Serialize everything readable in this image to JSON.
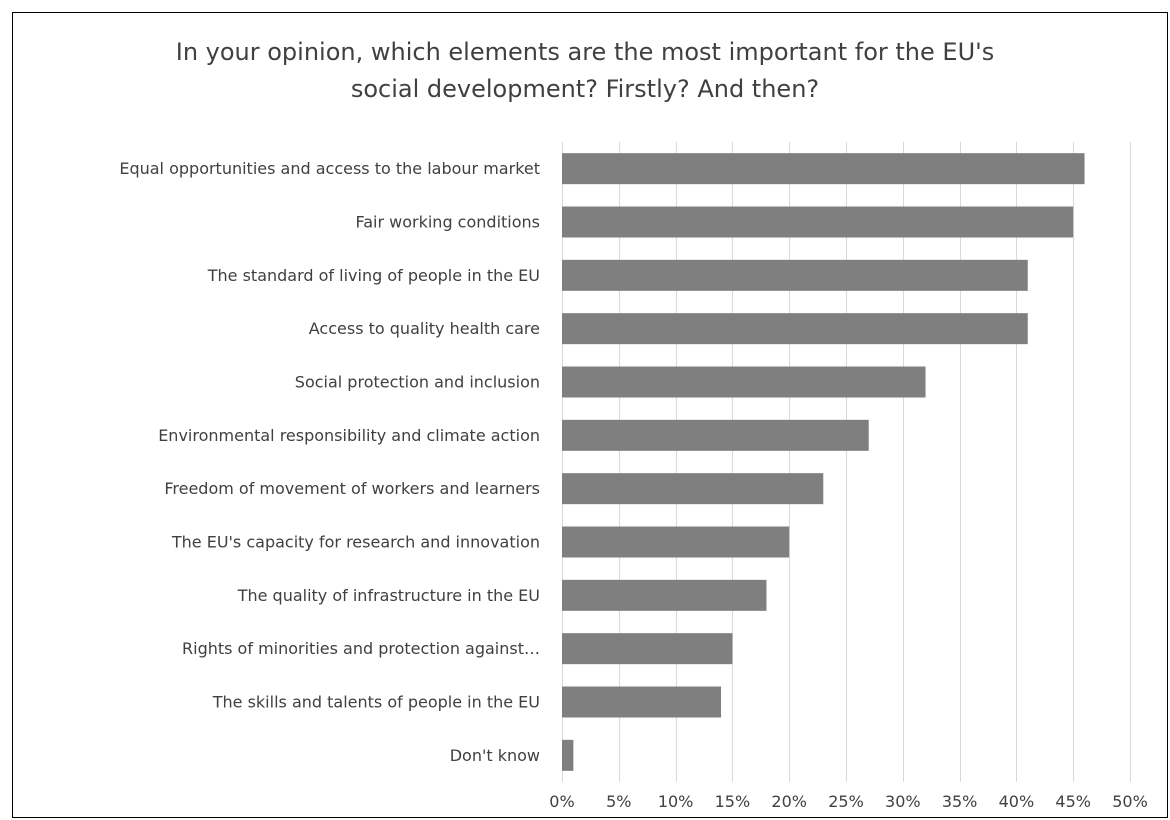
{
  "title": {
    "line1": "In your opinion, which elements are the most important for the EU's",
    "line2": "social development? Firstly? And then?"
  },
  "colors": {
    "bar": "#7f7f7f",
    "grid": "#d9d9d9",
    "text": "#404040",
    "border": "#000000"
  },
  "chart_data": {
    "type": "bar",
    "orientation": "horizontal",
    "title": "In your opinion, which elements are the most important for the EU's social development? Firstly? And then?",
    "categories": [
      "Equal opportunities and access to the labour market",
      "Fair working conditions",
      "The standard of living of people in the EU",
      "Access to quality health care",
      "Social protection and inclusion",
      "Environmental responsibility and climate action",
      "Freedom of movement of workers and learners",
      "The EU's capacity for research and innovation",
      "The quality of infrastructure in the EU",
      "Rights of minorities and protection against…",
      "The skills and talents of people in the EU",
      "Don't know"
    ],
    "values": [
      46,
      45,
      41,
      41,
      32,
      27,
      23,
      20,
      18,
      15,
      14,
      1
    ],
    "unit": "%",
    "xlim": [
      0,
      50
    ],
    "xticks": [
      0,
      5,
      10,
      15,
      20,
      25,
      30,
      35,
      40,
      45,
      50
    ],
    "tick_labels": [
      "0%",
      "5%",
      "10%",
      "15%",
      "20%",
      "25%",
      "30%",
      "35%",
      "40%",
      "45%",
      "50%"
    ],
    "xlabel": "",
    "ylabel": "",
    "grid": "vertical",
    "legend": "none"
  }
}
